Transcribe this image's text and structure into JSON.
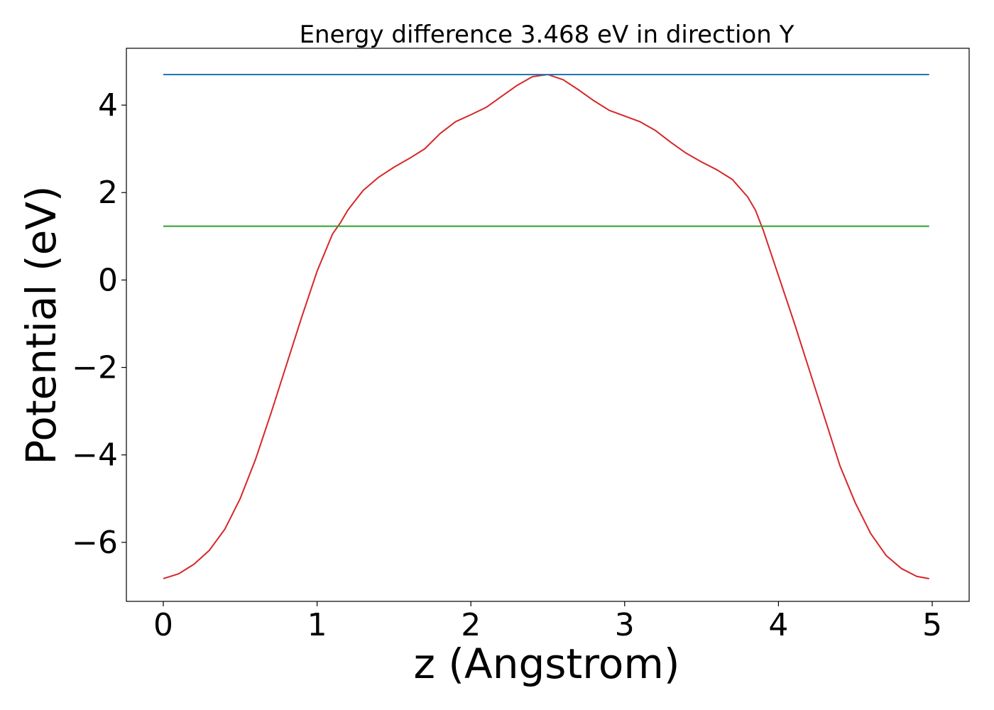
{
  "chart_data": {
    "type": "line",
    "title": "Energy difference 3.468 eV in direction Y",
    "xlabel": "z (Angstrom)",
    "ylabel": "Potential (eV)",
    "xlim": [
      -0.24,
      5.24
    ],
    "ylim": [
      -7.35,
      5.3
    ],
    "xticks": [
      0,
      1,
      2,
      3,
      4,
      5
    ],
    "xtick_labels": [
      "0",
      "1",
      "2",
      "3",
      "4",
      "5"
    ],
    "yticks": [
      -6,
      -4,
      -2,
      0,
      2,
      4
    ],
    "ytick_labels": [
      "−6",
      "−4",
      "−2",
      "0",
      "2",
      "4"
    ],
    "grid": false,
    "series": [
      {
        "color": "#d62728",
        "x": [
          0.0,
          0.1,
          0.2,
          0.3,
          0.4,
          0.5,
          0.6,
          0.7,
          0.8,
          0.9,
          1.0,
          1.1,
          1.15,
          1.2,
          1.3,
          1.4,
          1.5,
          1.6,
          1.7,
          1.8,
          1.9,
          2.0,
          2.1,
          2.2,
          2.3,
          2.4,
          2.5,
          2.6,
          2.7,
          2.8,
          2.9,
          3.0,
          3.1,
          3.2,
          3.3,
          3.4,
          3.5,
          3.6,
          3.7,
          3.8,
          3.85,
          3.9,
          4.0,
          4.1,
          4.2,
          4.3,
          4.4,
          4.5,
          4.6,
          4.7,
          4.8,
          4.9,
          4.98
        ],
        "y": [
          -6.83,
          -6.72,
          -6.5,
          -6.18,
          -5.7,
          -5.0,
          -4.1,
          -3.05,
          -1.95,
          -0.85,
          0.2,
          1.05,
          1.3,
          1.6,
          2.05,
          2.35,
          2.58,
          2.78,
          3.0,
          3.35,
          3.62,
          3.78,
          3.95,
          4.2,
          4.45,
          4.65,
          4.7,
          4.58,
          4.35,
          4.1,
          3.88,
          3.75,
          3.62,
          3.42,
          3.15,
          2.9,
          2.7,
          2.52,
          2.3,
          1.9,
          1.6,
          1.15,
          0.1,
          -0.95,
          -2.05,
          -3.15,
          -4.25,
          -5.1,
          -5.8,
          -6.3,
          -6.6,
          -6.78,
          -6.83
        ]
      },
      {
        "color": "#1f77b4",
        "x": [
          0.0,
          4.98
        ],
        "y": [
          4.7,
          4.7
        ]
      },
      {
        "color": "#2ca02c",
        "x": [
          0.0,
          4.98
        ],
        "y": [
          1.23,
          1.23
        ]
      }
    ]
  }
}
